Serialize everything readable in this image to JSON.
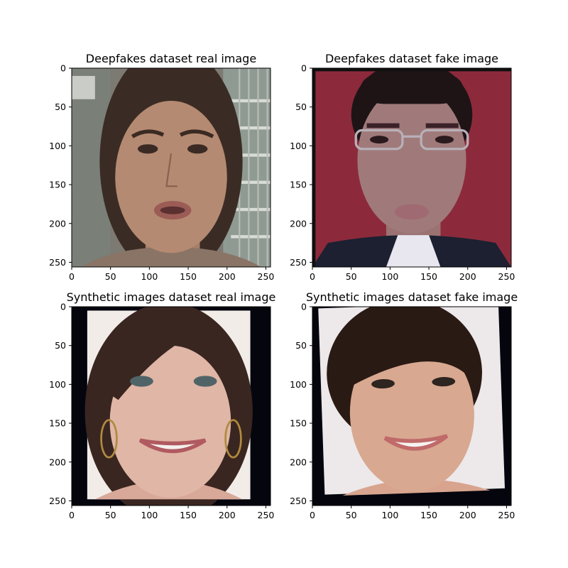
{
  "chart_data": [
    {
      "type": "image",
      "title": "Deepfakes dataset real image",
      "xlim": [
        0,
        256
      ],
      "ylim": [
        256,
        0
      ],
      "xticks": [
        0,
        50,
        100,
        150,
        200,
        250
      ],
      "yticks": [
        0,
        50,
        100,
        150,
        200,
        250
      ],
      "image": {
        "background": "#7d7a73",
        "frame": "none",
        "skin": "#b58a72",
        "hair": "#3a2c24",
        "clothing": "#8a7466",
        "surroundings": "#8f9a93"
      }
    },
    {
      "type": "image",
      "title": "Deepfakes dataset fake image",
      "xlim": [
        0,
        256
      ],
      "ylim": [
        256,
        0
      ],
      "xticks": [
        0,
        50,
        100,
        150,
        200,
        250
      ],
      "yticks": [
        0,
        50,
        100,
        150,
        200,
        250
      ],
      "image": {
        "background": "#8c2a3c",
        "frame": "none",
        "skin": "#a07a7a",
        "hair": "#1e1416",
        "clothing": "#1c2030",
        "surroundings": "#8c2a3c"
      }
    },
    {
      "type": "image",
      "title": "Synthetic images dataset real image",
      "xlim": [
        0,
        256
      ],
      "ylim": [
        256,
        0
      ],
      "xticks": [
        0,
        50,
        100,
        150,
        200,
        250
      ],
      "yticks": [
        0,
        50,
        100,
        150,
        200,
        250
      ],
      "image": {
        "background": "#05050e",
        "frame": "black-border",
        "skin": "#e0b6a6",
        "hair": "#3a2620",
        "clothing": "#e4d9d6",
        "surroundings": "#f2ece8"
      }
    },
    {
      "type": "image",
      "title": "Synthetic images dataset fake image",
      "xlim": [
        0,
        256
      ],
      "ylim": [
        256,
        0
      ],
      "xticks": [
        0,
        50,
        100,
        150,
        200,
        250
      ],
      "yticks": [
        0,
        50,
        100,
        150,
        200,
        250
      ],
      "image": {
        "background": "#05050e",
        "frame": "rotated-black-border",
        "skin": "#d8a890",
        "hair": "#2a1a14",
        "clothing": "#e8dfdc",
        "surroundings": "#ede8ea"
      }
    }
  ]
}
